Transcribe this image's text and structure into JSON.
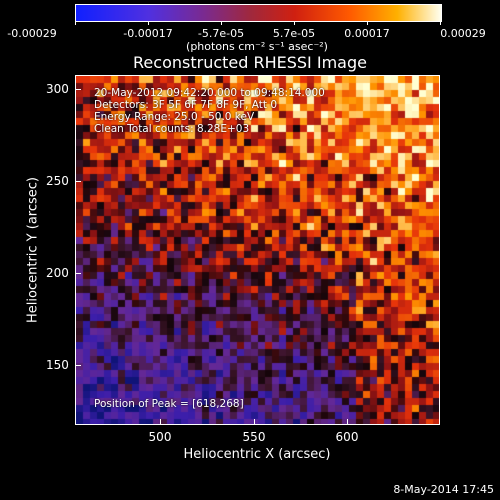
{
  "colorbar": {
    "ticks": [
      "-0.00029",
      "-0.00017",
      "-5.7e-05",
      "5.7e-05",
      "0.00017",
      "0.00029"
    ],
    "units": "(photons cm⁻² s⁻¹ asec⁻²)"
  },
  "title": "Reconstructed RHESSI Image",
  "annotations": {
    "time": "20-May-2012 09:42:20.000 to 09:48:14.000",
    "detectors": "Detectors: 3F 5F 6F 7F 8F 9F, Att 0",
    "energy": "Energy Range: 25.0 - 50.0 keV",
    "clean": "Clean    Total counts: 8.28E+03",
    "peak": "Position of Peak = [618,268]"
  },
  "axes": {
    "xlabel": "Heliocentric X (arcsec)",
    "ylabel": "Heliocentric Y (arcsec)",
    "xticks": [
      "500",
      "550",
      "600"
    ],
    "yticks": [
      "300",
      "250",
      "200",
      "150"
    ]
  },
  "timestamp": "8-May-2014 17:45"
}
